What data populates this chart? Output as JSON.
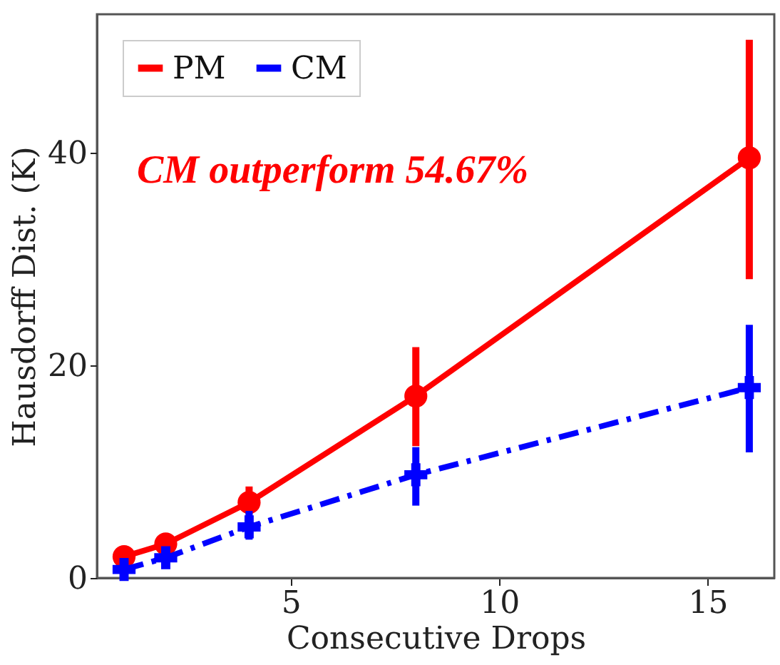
{
  "chart_data": {
    "type": "line",
    "xlabel": "Consecutive Drops",
    "ylabel": "Hausdorff Dist. (K)",
    "x": [
      1,
      2,
      4,
      8,
      16
    ],
    "series": [
      {
        "name": "PM",
        "color": "#ff0000",
        "marker": "circle",
        "line_style": "solid",
        "values": [
          2.0,
          3.2,
          7.1,
          17.1,
          39.5
        ],
        "errors": [
          null,
          null,
          [
            6.0,
            8.6
          ],
          [
            12.4,
            21.7
          ],
          [
            28.1,
            50.6
          ]
        ]
      },
      {
        "name": "CM",
        "color": "#0000ff",
        "marker": "cross",
        "line_style": "dashdot",
        "values": [
          0.8,
          1.9,
          4.8,
          9.7,
          17.9
        ],
        "errors": [
          null,
          null,
          [
            3.6,
            6.3
          ],
          [
            6.8,
            12.3
          ],
          [
            11.8,
            23.8
          ]
        ]
      }
    ],
    "xlim": [
      0.35,
      16.6
    ],
    "ylim": [
      0,
      53
    ],
    "xticks": [
      5,
      10,
      15
    ],
    "yticks": [
      0,
      20,
      40
    ],
    "grid": false,
    "legend": "top left",
    "annotations": [
      "CM outperform 54.67%"
    ]
  }
}
